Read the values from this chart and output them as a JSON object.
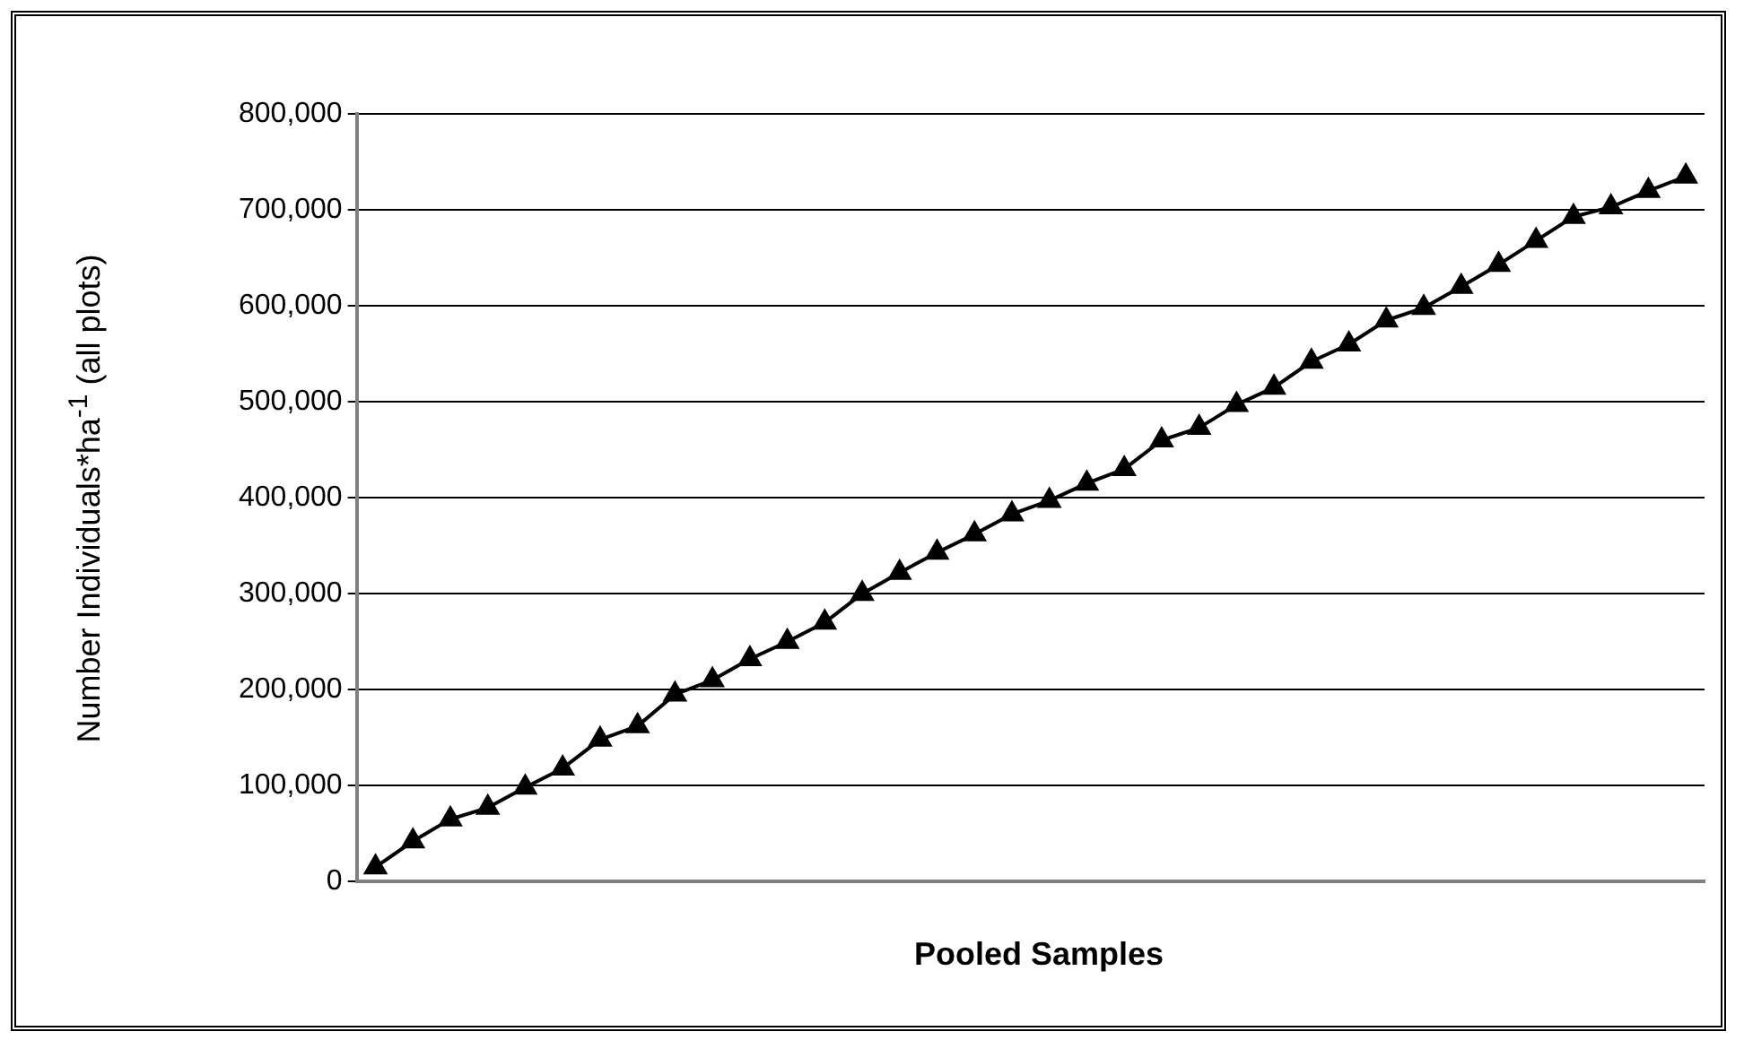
{
  "chart_data": {
    "type": "line",
    "xlabel": "Pooled Samples",
    "ylabel": "Number Individuals*ha$^{-1}$ (all plots)",
    "categories": [
      null,
      null,
      null,
      null,
      null,
      null,
      null,
      null,
      null,
      null,
      null,
      null,
      null,
      null,
      null,
      null,
      null,
      null,
      null,
      null,
      null,
      null,
      null,
      null,
      null,
      null,
      null,
      null,
      null,
      null,
      null,
      null,
      null,
      null,
      null,
      null
    ],
    "series": [
      {
        "color": "#000000",
        "values": [
          15000,
          42000,
          65000,
          77000,
          98000,
          118000,
          148000,
          162000,
          195000,
          210000,
          232000,
          250000,
          270000,
          300000,
          322000,
          343000,
          362000,
          383000,
          397000,
          415000,
          430000,
          460000,
          473000,
          497000,
          515000,
          542000,
          560000,
          585000,
          598000,
          620000,
          643000,
          668000,
          693000,
          703000,
          720000,
          735000
        ]
      }
    ],
    "ylim": [
      0,
      800000
    ],
    "yticks": [
      0,
      {
        "value": 100000,
        "label": "100,000"
      },
      {
        "value": 200000,
        "label": "200,000"
      },
      {
        "value": 300000,
        "label": "300,000"
      },
      {
        "value": 400000,
        "label": "400,000"
      },
      {
        "value": 500000,
        "label": "500,000"
      },
      {
        "value": 600000,
        "label": "600,000"
      },
      {
        "value": 700000,
        "label": "700,000"
      },
      {
        "value": 800000,
        "label": "800,000"
      }
    ],
    "grid": "y",
    "legend": false,
    "marker": "triangle",
    "line_style": "solid"
  }
}
